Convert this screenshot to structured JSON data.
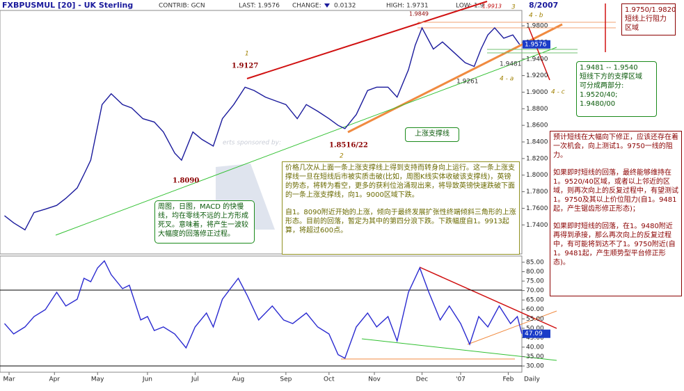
{
  "header": {
    "symbol": "FXBPUSMUL [20] - UK Sterling",
    "contrib": "CONTRIB: GCN",
    "last": "LAST: 1.9576",
    "change": "CHANGE:",
    "change_value": "0.0132",
    "high": "HIGH: 1.9731",
    "low": "LOW: 1.9",
    "date": "8/2007"
  },
  "chart_data": [
    {
      "type": "line",
      "name": "price",
      "color": "#1a1a9c",
      "x": [
        2,
        6,
        11,
        15,
        20,
        25,
        29,
        34,
        37,
        40,
        45,
        49,
        54,
        58,
        63,
        68,
        72,
        77,
        80,
        85,
        89,
        94,
        98,
        103,
        108,
        112,
        117,
        122,
        126,
        131,
        135,
        140,
        145,
        149,
        152,
        157,
        162,
        166,
        171,
        175,
        180,
        183,
        186,
        191,
        195,
        200,
        205,
        209,
        212,
        215,
        218,
        222,
        226,
        229
      ],
      "values": [
        1.751,
        1.7425,
        1.734,
        1.755,
        1.759,
        1.7635,
        1.772,
        1.7845,
        1.801,
        1.818,
        1.885,
        1.898,
        1.885,
        1.881,
        1.868,
        1.864,
        1.852,
        1.8265,
        1.818,
        1.852,
        1.843,
        1.835,
        1.868,
        1.885,
        1.906,
        1.902,
        1.894,
        1.889,
        1.885,
        1.868,
        1.885,
        1.877,
        1.868,
        1.86,
        1.856,
        1.873,
        1.902,
        1.906,
        1.906,
        1.894,
        1.927,
        1.9565,
        1.9775,
        1.952,
        1.9605,
        1.948,
        1.9355,
        1.931,
        1.952,
        1.969,
        1.9775,
        1.965,
        1.969,
        1.9576
      ],
      "last_label": "1.9576",
      "xlim": [
        0,
        230
      ],
      "ylim": [
        1.705,
        1.9985
      ],
      "yticks": [
        {
          "value": 1.74,
          "label": "1.7400"
        },
        {
          "value": 1.76,
          "label": "1.7600"
        },
        {
          "value": 1.78,
          "label": "1.7800"
        },
        {
          "value": 1.8,
          "label": "1.8000"
        },
        {
          "value": 1.82,
          "label": "1.8200"
        },
        {
          "value": 1.84,
          "label": "1.8400"
        },
        {
          "value": 1.86,
          "label": "1.8600"
        },
        {
          "value": 1.88,
          "label": "1.8800"
        },
        {
          "value": 1.9,
          "label": "1.9000"
        },
        {
          "value": 1.92,
          "label": "1.9200"
        },
        {
          "value": 1.94,
          "label": "1.9400"
        },
        {
          "value": 1.96,
          "label": "1.9600"
        },
        {
          "value": 1.98,
          "label": "1.9800"
        }
      ]
    },
    {
      "type": "line",
      "name": "rsi",
      "color": "#2a2ad0",
      "x": [
        2,
        6,
        11,
        15,
        20,
        25,
        29,
        34,
        37,
        40,
        43,
        46,
        49,
        54,
        57,
        62,
        65,
        68,
        72,
        77,
        82,
        86,
        91,
        94,
        98,
        105,
        109,
        114,
        120,
        125,
        129,
        135,
        140,
        145,
        149,
        152,
        157,
        162,
        166,
        171,
        175,
        180,
        185,
        189,
        194,
        198,
        203,
        207,
        211,
        215,
        220,
        225,
        228,
        230
      ],
      "values": [
        52.5,
        47,
        50.7,
        56.2,
        59.9,
        69.1,
        61.8,
        65.4,
        76.5,
        74.7,
        82,
        85.7,
        78.4,
        71,
        72.8,
        54.4,
        56.2,
        48.8,
        50.7,
        47,
        39.6,
        50.7,
        58.1,
        50.7,
        65.4,
        76.5,
        67.3,
        54.4,
        61.8,
        54.4,
        52.5,
        58.1,
        50.7,
        47,
        36,
        34.1,
        50.7,
        58.1,
        50.7,
        56.2,
        43.3,
        69.1,
        82,
        69.1,
        54.4,
        61.8,
        52.5,
        41.5,
        56.2,
        50.7,
        61.8,
        52.5,
        56.2,
        47.09
      ],
      "last_label": "47.09",
      "xlim": [
        0,
        230
      ],
      "ylim": [
        26.7,
        88.3
      ],
      "yticks": [
        {
          "value": 30,
          "label": "30.00"
        },
        {
          "value": 35,
          "label": "35.00"
        },
        {
          "value": 40,
          "label": "40.00"
        },
        {
          "value": 45,
          "label": "45.00"
        },
        {
          "value": 50,
          "label": "50.00"
        },
        {
          "value": 55,
          "label": "55.00"
        },
        {
          "value": 60,
          "label": "60.00"
        },
        {
          "value": 65,
          "label": "65.00"
        },
        {
          "value": 70,
          "label": "70.00"
        },
        {
          "value": 75,
          "label": "75.00"
        },
        {
          "value": 80,
          "label": "80.00"
        },
        {
          "value": 85,
          "label": "85.00"
        }
      ],
      "xticks": [
        {
          "value": 4,
          "label": "Mar"
        },
        {
          "value": 24,
          "label": "Apr"
        },
        {
          "value": 43,
          "label": "May"
        },
        {
          "value": 65,
          "label": "Jun"
        },
        {
          "value": 86,
          "label": "Jul"
        },
        {
          "value": 105,
          "label": "Aug"
        },
        {
          "value": 126,
          "label": "Sep"
        },
        {
          "value": 145,
          "label": "Oct"
        },
        {
          "value": 165,
          "label": "Nov"
        },
        {
          "value": 186,
          "label": "Dec"
        },
        {
          "value": 203,
          "label": "'07"
        },
        {
          "value": 224,
          "label": "Feb"
        }
      ],
      "period": "Daily"
    }
  ],
  "labels": {
    "p1": "1.9127",
    "w1": "1",
    "p2": "1.8090",
    "p3": "1.8516/22",
    "w2": "2",
    "p4": "1.9849",
    "p5": "1.9913",
    "w3": "3",
    "w4b": "4 - b",
    "p6": "1.9481",
    "w4a": "4 - a",
    "p7": "1.9261",
    "w4c": "4 - c",
    "sponsor": "erts sponsored by:"
  },
  "notes": {
    "resistance": [
      "1.9750/1.9820",
      "短线上行阻力",
      "区域"
    ],
    "support": [
      "1.9481 -- 1.9540",
      "短线下方的支撑区域",
      "可分成两部分:",
      "1.9520/40;",
      "1.9480/00"
    ],
    "forecast": [
      "预计短线在大幅向下修正，应该还存在着一次机会，向上测试1。9750一线的阻力。",
      "如果即时短线的回落，最终能够维持在1。9520/40区域，或者以上邻近的区域，则再次向上的反复过程中，有望测试1。9750及其以上价位阻力(自1。9481起，产生锯齿形修正形态)；",
      "如果即时短线的回落，在1。9480附近再得到承接，那么再次向上的反复过程中，有可能将到达不了1。9750附近(自1。9481起，产生顺势型平台修正形态)。"
    ],
    "trend": [
      "价格几次从上面一条上涨支撑线上得到支持而转身向上运行。这一条上涨支撑线一旦在短线后市被实质击破(比如，周图K线实体收破该支撑线)，英镑的势态，将转为看空，更多的获利位治涌现出来，将导致英镑快速跌破下面的一条上涨支撑线，向1。9000区域下跌。",
      "自1。8090附近开始的上涨，倾向于最终发展扩张性终端倾斜三角形的上涨形态。目前的回落，暂定为其中的第四分浪下跌。下跌幅度自1。9913起算，将超过600点。"
    ],
    "macd": "周图，日图，MACD 的快慢线，均在零线不远的上方形成死叉。意味着，将产生一波较大幅度的回落修正过程。",
    "support_line": "上涨支撑线"
  }
}
